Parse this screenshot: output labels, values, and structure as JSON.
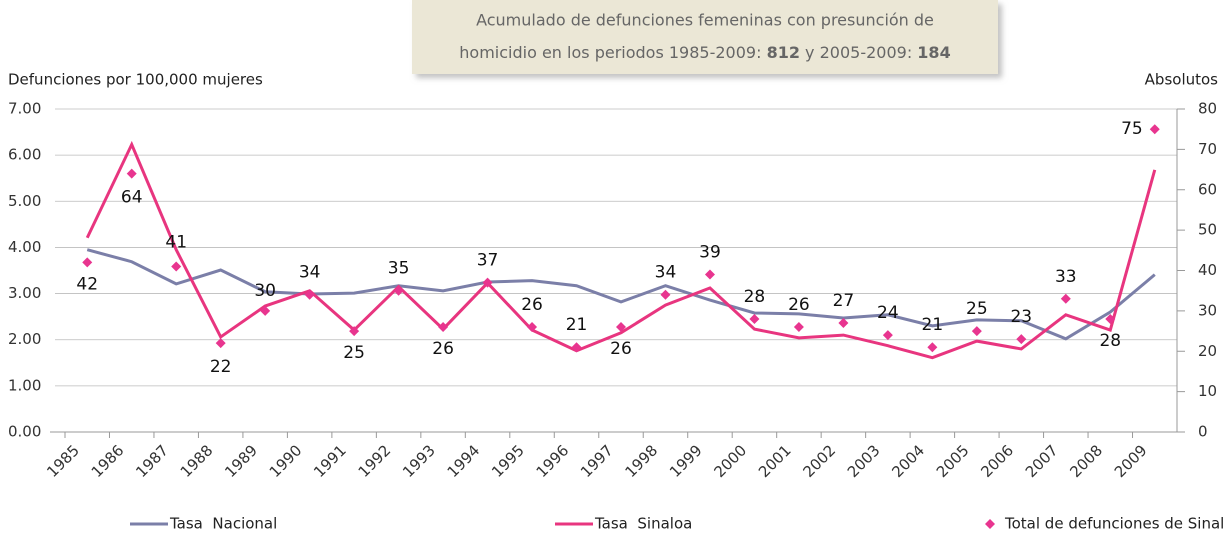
{
  "chart_data": {
    "type": "line",
    "annotation": {
      "line1": "Acumulado de defunciones femeninas con presunción de",
      "line2_text1": "homicidio en los periodos 1985-2009: ",
      "line2_bold1": "812",
      "line2_text2": " y 2005-2009: ",
      "line2_bold2": "184"
    },
    "y_label": "Defunciones por 100,000 mujeres",
    "y2_label": "Absolutos",
    "categories": [
      "1985",
      "1986",
      "1987",
      "1988",
      "1989",
      "1990",
      "1991",
      "1992",
      "1993",
      "1994",
      "1995",
      "1996",
      "1997",
      "1998",
      "1999",
      "2000",
      "2001",
      "2002",
      "2003",
      "2004",
      "2005",
      "2006",
      "2007",
      "2008",
      "2009"
    ],
    "series": [
      {
        "name": "Tasa  Nacional",
        "color": "#7b7fa8",
        "values": [
          3.95,
          3.69,
          3.21,
          3.51,
          3.04,
          2.99,
          3.01,
          3.17,
          3.06,
          3.25,
          3.28,
          3.17,
          2.82,
          3.17,
          2.86,
          2.58,
          2.56,
          2.47,
          2.54,
          2.3,
          2.43,
          2.41,
          2.02,
          2.6,
          3.41
        ]
      },
      {
        "name": "Tasa  Sinaloa",
        "color": "#e8357f",
        "values": [
          4.21,
          6.23,
          3.95,
          2.06,
          2.73,
          3.06,
          2.21,
          3.15,
          2.23,
          3.23,
          2.21,
          1.76,
          2.15,
          2.75,
          3.12,
          2.23,
          2.04,
          2.1,
          1.87,
          1.61,
          1.97,
          1.8,
          2.54,
          2.21,
          5.68
        ]
      },
      {
        "name": "Total de defunciones de Sinaloa",
        "color": "#e8358f",
        "axis": "y2",
        "marker": "diamond",
        "values": [
          42,
          64,
          41,
          22,
          30,
          34,
          25,
          35,
          26,
          37,
          26,
          21,
          26,
          34,
          39,
          28,
          26,
          27,
          24,
          21,
          25,
          23,
          33,
          28,
          75
        ]
      }
    ],
    "ylim": [
      0,
      7
    ],
    "yticks": [
      {
        "value": 0,
        "label": "0.00"
      },
      {
        "value": 1,
        "label": "1.00"
      },
      {
        "value": 2,
        "label": "2.00"
      },
      {
        "value": 3,
        "label": "3.00"
      },
      {
        "value": 4,
        "label": "4.00"
      },
      {
        "value": 5,
        "label": "5.00"
      },
      {
        "value": 6,
        "label": "6.00"
      },
      {
        "value": 7,
        "label": "7.00"
      }
    ],
    "y2lim": [
      0,
      80
    ],
    "y2ticks": [
      0,
      10,
      20,
      30,
      40,
      50,
      60,
      70,
      80
    ],
    "grid": true
  }
}
